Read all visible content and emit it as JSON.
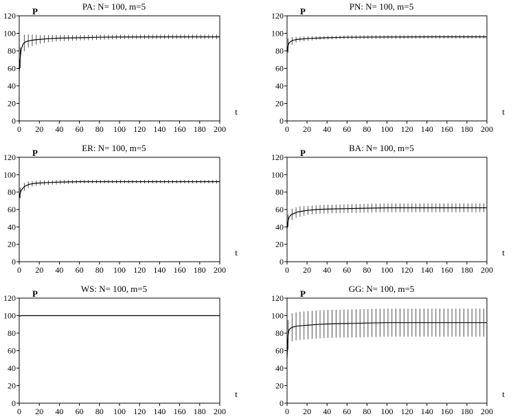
{
  "chart_data": [
    {
      "type": "line",
      "title": "PA:  N= 100, m=5",
      "xlabel": "t",
      "ylabel": "P",
      "xlim": [
        0,
        200
      ],
      "ylim": [
        0,
        120
      ],
      "xticks": [
        "0",
        "20",
        "40",
        "60",
        "80",
        "100",
        "120",
        "140",
        "160",
        "180",
        "200"
      ],
      "yticks": [
        "0",
        "20",
        "40",
        "60",
        "80",
        "100",
        "120"
      ],
      "grid": false,
      "legend": "none",
      "error_bars": "vertical, every 4 t",
      "x": [
        0,
        1,
        2,
        4,
        6,
        8,
        10,
        15,
        20,
        30,
        40,
        60,
        80,
        100,
        150,
        200
      ],
      "series": [
        {
          "values": [
            57,
            72,
            82,
            88,
            90,
            91,
            91.5,
            92.5,
            93,
            94,
            94.5,
            95,
            95.5,
            95.8,
            96,
            96
          ],
          "error": [
            12,
            12,
            11,
            10,
            9,
            8,
            7,
            6,
            5,
            4,
            3.5,
            3,
            3,
            2.5,
            2.5,
            2.5
          ]
        }
      ]
    },
    {
      "type": "line",
      "title": "PN:  N= 100, m=5",
      "xlabel": "t",
      "ylabel": "P",
      "xlim": [
        0,
        200
      ],
      "ylim": [
        0,
        120
      ],
      "xticks": [
        "0",
        "20",
        "40",
        "60",
        "80",
        "100",
        "120",
        "140",
        "160",
        "180",
        "200"
      ],
      "yticks": [
        "0",
        "20",
        "40",
        "60",
        "80",
        "100",
        "120"
      ],
      "grid": false,
      "legend": "none",
      "error_bars": "vertical, every 4 t",
      "x": [
        0,
        1,
        2,
        4,
        6,
        8,
        10,
        20,
        30,
        40,
        60,
        100,
        150,
        200
      ],
      "series": [
        {
          "values": [
            78,
            86,
            89,
            91,
            92,
            92.5,
            93,
            94,
            94.5,
            95,
            95.5,
            95.8,
            96,
            96
          ],
          "error": [
            10,
            8,
            6,
            5,
            4,
            3.5,
            3,
            2.5,
            2,
            2,
            2,
            2,
            2,
            2
          ]
        }
      ]
    },
    {
      "type": "line",
      "title": "ER:  N= 100, m=5",
      "xlabel": "t",
      "ylabel": "P",
      "xlim": [
        0,
        200
      ],
      "ylim": [
        0,
        120
      ],
      "xticks": [
        "0",
        "20",
        "40",
        "60",
        "80",
        "100",
        "120",
        "140",
        "160",
        "180",
        "200"
      ],
      "yticks": [
        "0",
        "20",
        "40",
        "60",
        "80",
        "100",
        "120"
      ],
      "grid": false,
      "legend": "none",
      "error_bars": "vertical, every 4 t",
      "x": [
        0,
        1,
        2,
        4,
        6,
        8,
        10,
        15,
        20,
        30,
        40,
        60,
        100,
        150,
        200
      ],
      "series": [
        {
          "values": [
            73,
            79,
            82,
            85,
            87,
            88,
            89,
            90,
            90.5,
            91,
            91.5,
            92,
            92,
            92,
            92
          ],
          "error": [
            7,
            6,
            5,
            5,
            4,
            4,
            3.5,
            3,
            3,
            2.5,
            2.5,
            2,
            2,
            2,
            2
          ]
        }
      ]
    },
    {
      "type": "line",
      "title": "BA:  N= 100, m=5",
      "xlabel": "t",
      "ylabel": "P",
      "xlim": [
        0,
        200
      ],
      "ylim": [
        0,
        120
      ],
      "xticks": [
        "0",
        "20",
        "40",
        "60",
        "80",
        "100",
        "120",
        "140",
        "160",
        "180",
        "200"
      ],
      "yticks": [
        "0",
        "20",
        "40",
        "60",
        "80",
        "100",
        "120"
      ],
      "grid": false,
      "legend": "none",
      "error_bars": "vertical, every 4 t",
      "x": [
        0,
        1,
        2,
        4,
        6,
        8,
        10,
        15,
        20,
        30,
        40,
        60,
        100,
        150,
        200
      ],
      "series": [
        {
          "values": [
            38,
            47,
            51,
            54,
            55,
            56,
            57,
            58,
            59,
            60,
            60.5,
            61,
            62,
            62,
            62
          ],
          "error": [
            7,
            7,
            7,
            7,
            6,
            6,
            6,
            6,
            5,
            5,
            5,
            5,
            5,
            5,
            5
          ]
        }
      ]
    },
    {
      "type": "line",
      "title": "WS:  N= 100, m=5",
      "xlabel": "t",
      "ylabel": "P",
      "xlim": [
        0,
        200
      ],
      "ylim": [
        0,
        120
      ],
      "xticks": [
        "0",
        "20",
        "40",
        "60",
        "80",
        "100",
        "120",
        "140",
        "160",
        "180",
        "200"
      ],
      "yticks": [
        "0",
        "20",
        "40",
        "60",
        "80",
        "100",
        "120"
      ],
      "grid": false,
      "legend": "none",
      "error_bars": "vertical, first 20 t",
      "x": [
        0,
        1,
        2,
        4,
        10,
        20,
        100,
        200
      ],
      "series": [
        {
          "values": [
            99.5,
            99.8,
            99.9,
            100,
            100,
            100,
            100,
            100
          ],
          "error": [
            1,
            0.5,
            0.5,
            0.3,
            0.3,
            0.3,
            0,
            0
          ]
        }
      ]
    },
    {
      "type": "line",
      "title": "GG:  N= 100, m=5",
      "xlabel": "t",
      "ylabel": "P",
      "xlim": [
        0,
        200
      ],
      "ylim": [
        0,
        120
      ],
      "xticks": [
        "0",
        "20",
        "40",
        "60",
        "80",
        "100",
        "120",
        "140",
        "160",
        "180",
        "200"
      ],
      "yticks": [
        "0",
        "20",
        "40",
        "60",
        "80",
        "100",
        "120"
      ],
      "grid": false,
      "legend": "none",
      "error_bars": "vertical, every 4 t",
      "x": [
        0,
        1,
        2,
        4,
        6,
        8,
        10,
        15,
        20,
        30,
        40,
        60,
        80,
        100,
        150,
        200
      ],
      "series": [
        {
          "values": [
            52,
            78,
            84,
            86,
            87,
            87.5,
            88,
            88.5,
            89,
            90,
            90.5,
            91,
            91.5,
            92,
            92,
            92
          ],
          "error": [
            18,
            17,
            16,
            16,
            16,
            16,
            16,
            16,
            16,
            16,
            16,
            16,
            16,
            16,
            16,
            16
          ]
        }
      ]
    }
  ]
}
